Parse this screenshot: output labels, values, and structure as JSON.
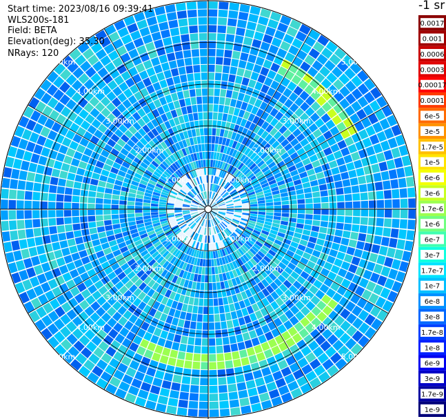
{
  "header": {
    "start_time": "Start time: 2023/08/16 09:39:41",
    "instrument": "WLS200s-181",
    "field": "Field: BETA",
    "elevation": "Elevation(deg): 35.30",
    "nrays": "NRays: 120"
  },
  "ppi": {
    "range_rings": [
      {
        "label": "1.00km",
        "km": 1
      },
      {
        "label": "2.00km",
        "km": 2
      },
      {
        "label": "3.00km",
        "km": 3
      },
      {
        "label": "4.00km",
        "km": 4
      },
      {
        "label": "5.00km",
        "km": 5
      }
    ],
    "max_range_km": 5.0,
    "n_rays": 120
  },
  "colorbar": {
    "unit_label": "-1 sr",
    "ticks": [
      "0.0017",
      "0.001",
      "0.0006",
      "0.0003",
      "0.00017",
      "0.0001",
      "6e-5",
      "3e-5",
      "1.7e-5",
      "1e-5",
      "6e-6",
      "3e-6",
      "1.7e-6",
      "1e-6",
      "6e-7",
      "3e-7",
      "1.7e-7",
      "1e-7",
      "6e-8",
      "3e-8",
      "1.7e-8",
      "1e-8",
      "6e-9",
      "3e-9",
      "1.7e-9",
      "1e-9"
    ],
    "colors": [
      "#8b0000",
      "#a00000",
      "#c80000",
      "#e00000",
      "#ff0000",
      "#ff3a00",
      "#ff6a00",
      "#ff9200",
      "#ffc000",
      "#ffe400",
      "#f4ff00",
      "#c8ff20",
      "#9cff50",
      "#70ff80",
      "#40ffb0",
      "#10ffe0",
      "#00e4ff",
      "#00c0ff",
      "#0090ff",
      "#0068ff",
      "#0040ff",
      "#0020ff",
      "#0000f0",
      "#0000c8",
      "#0000a0",
      "#00007a"
    ]
  }
}
